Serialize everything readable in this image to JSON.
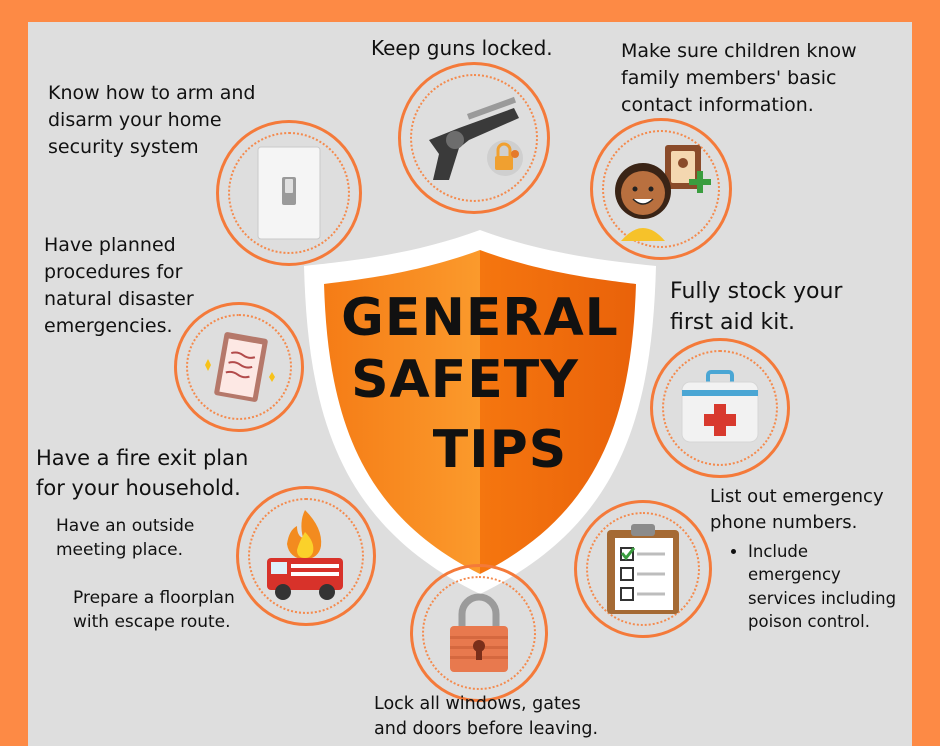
{
  "title": {
    "line1": "GENERAL",
    "line2": "SAFETY",
    "line3": "TIPS"
  },
  "tips": {
    "guns": "Keep guns locked.",
    "security_1": "Know how to arm and",
    "security_2": "disarm your home",
    "security_3": "security system",
    "children_1": "Make sure children know",
    "children_2": "family members' basic",
    "children_3": "contact information.",
    "disaster_1": "Have planned",
    "disaster_2": "procedures for",
    "disaster_3": "natural disaster",
    "disaster_4": "emergencies.",
    "first_aid_1": "Fully stock your",
    "first_aid_2": "first aid kit.",
    "fire_1": "Have a fire exit plan",
    "fire_2": "for your household.",
    "fire_sub1_1": "Have an outside",
    "fire_sub1_2": "meeting place.",
    "fire_sub2_1": "Prepare a floorplan",
    "fire_sub2_2": "with escape route.",
    "phone_1": "List out emergency",
    "phone_2": "phone numbers.",
    "phone_bullet_1": "Include",
    "phone_bullet_2": "emergency",
    "phone_bullet_3": "services including",
    "phone_bullet_4": "poison control.",
    "lock_1": "Lock all windows, gates",
    "lock_2": "and doors before leaving."
  },
  "icons": {
    "gun": "revolver-icon",
    "switch": "light-switch-icon",
    "child": "child-contact-icon",
    "clipboard_disaster": "clipboard-icon",
    "first_aid": "first-aid-kit-icon",
    "fire_truck": "fire-truck-icon",
    "checklist": "checklist-icon",
    "padlock": "padlock-icon"
  },
  "colors": {
    "background": "#fd8a45",
    "panel": "#dedede",
    "accent": "#f47a3a",
    "shield": "#f7861c"
  }
}
